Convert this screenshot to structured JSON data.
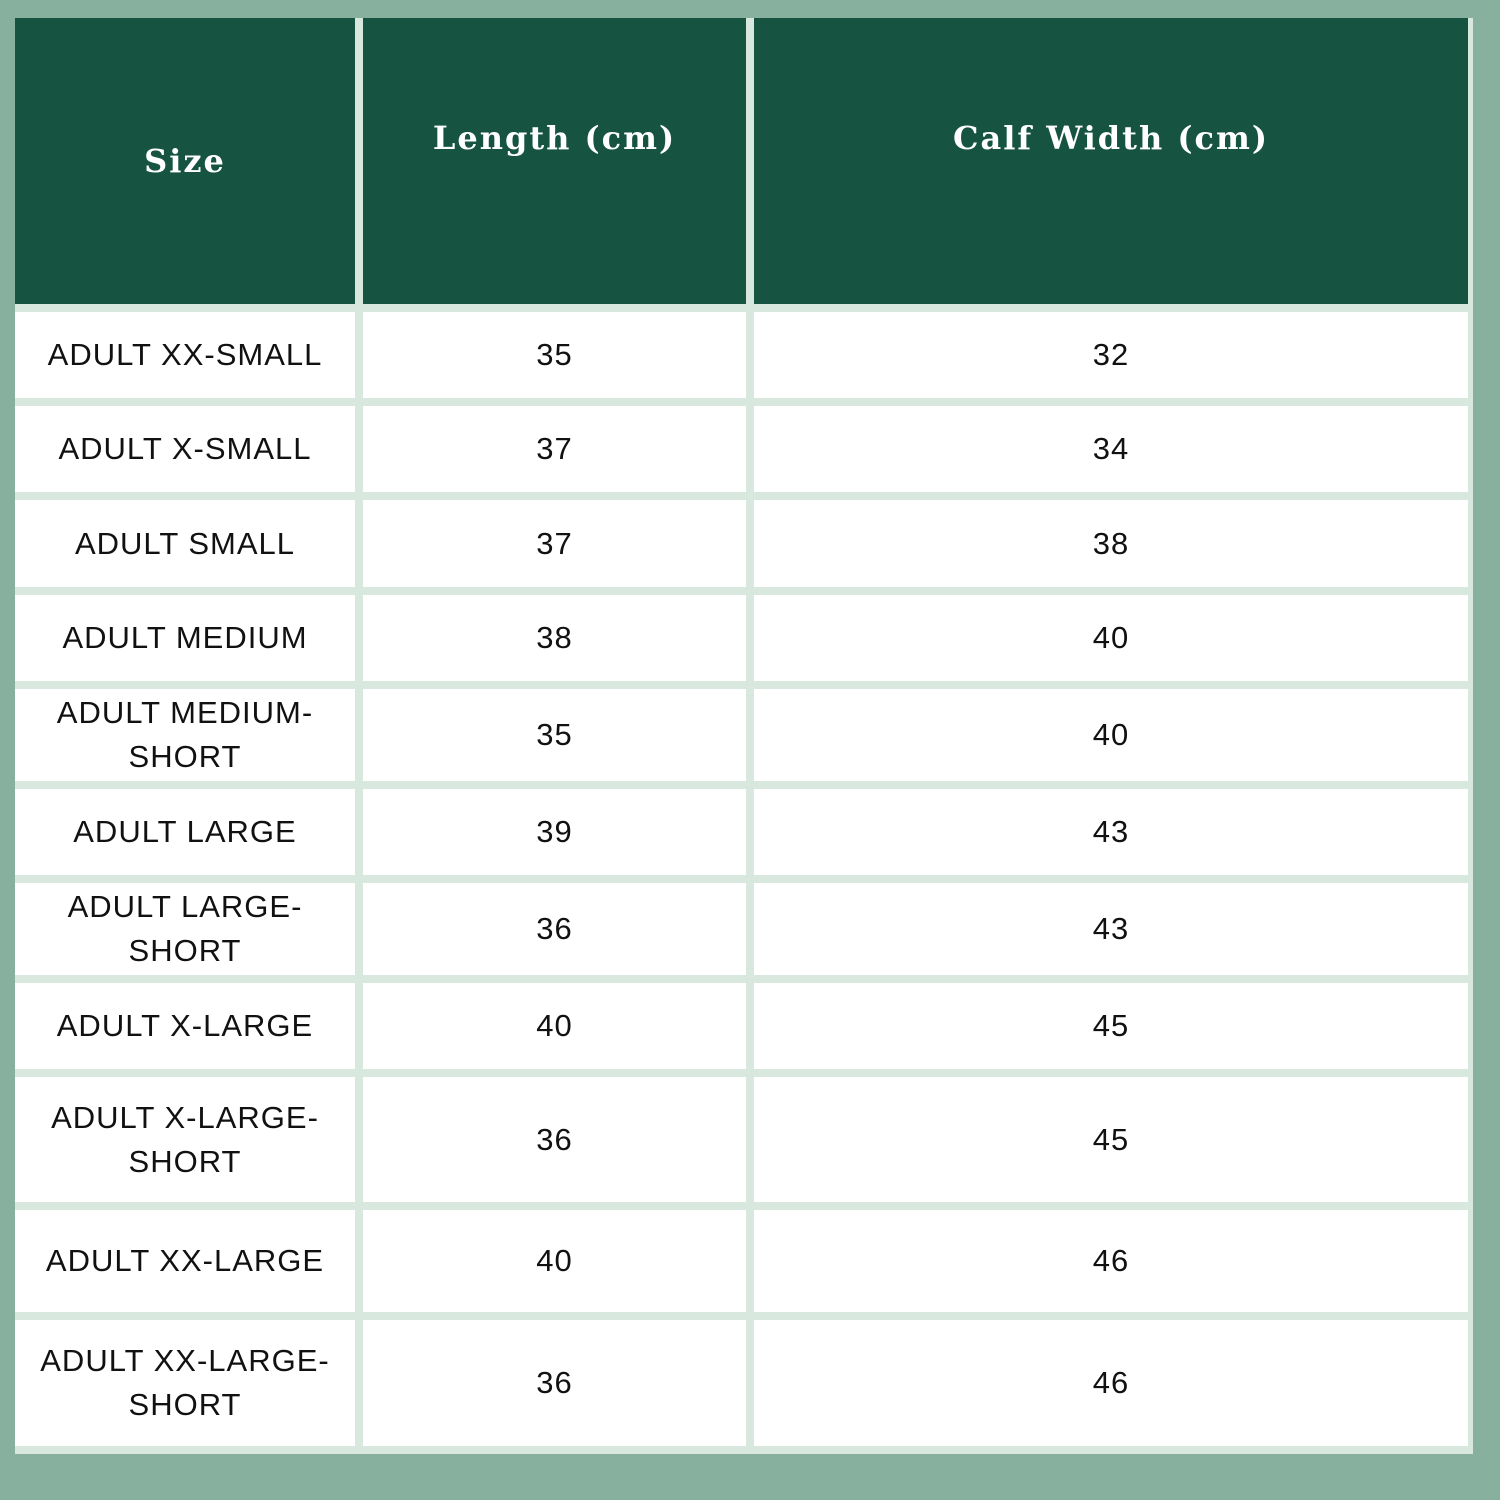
{
  "headers": [
    "Size",
    "Length (cm)",
    "Calf Width (cm)"
  ],
  "rows": [
    [
      "ADULT XX-SMALL",
      "35",
      "32"
    ],
    [
      "ADULT X-SMALL",
      "37",
      "34"
    ],
    [
      "ADULT SMALL",
      "37",
      "38"
    ],
    [
      "ADULT MEDIUM",
      "38",
      "40"
    ],
    [
      "ADULT MEDIUM-SHORT",
      "35",
      "40"
    ],
    [
      "ADULT LARGE",
      "39",
      "43"
    ],
    [
      "ADULT LARGE-SHORT",
      "36",
      "43"
    ],
    [
      "ADULT X-LARGE",
      "40",
      "45"
    ],
    [
      "ADULT X-LARGE-SHORT",
      "36",
      "45"
    ],
    [
      "ADULT XX-LARGE",
      "40",
      "46"
    ],
    [
      "ADULT XX-LARGE-SHORT",
      "36",
      "46"
    ]
  ],
  "colors": {
    "header_bg": "#165441",
    "page_bg": "#87b09f",
    "border": "#d9e8df"
  }
}
